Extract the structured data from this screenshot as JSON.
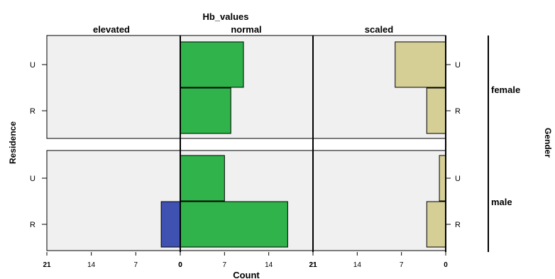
{
  "chart_data": {
    "type": "bar",
    "orientation": "horizontal",
    "title": "Hb_values",
    "xlabel": "Count",
    "ylabel": "Residence",
    "row_facet_label": "Gender",
    "columns": [
      {
        "label": "elevated",
        "axis_ticks": [
          "21",
          "14",
          "7",
          "0"
        ],
        "xlim": [
          21,
          0
        ],
        "direction": "leftward",
        "color": "#3f51b1"
      },
      {
        "label": "normal",
        "axis_ticks": [
          "0",
          "7",
          "14",
          "21"
        ],
        "xlim": [
          0,
          21
        ],
        "direction": "rightward",
        "color": "#2fb34a"
      },
      {
        "label": "scaled",
        "axis_ticks": [
          "21",
          "14",
          "7",
          "0"
        ],
        "xlim": [
          21,
          0
        ],
        "direction": "leftward",
        "color": "#d5cf96"
      }
    ],
    "rows": [
      {
        "label": "female",
        "categories": [
          "U",
          "R"
        ]
      },
      {
        "label": "male",
        "categories": [
          "U",
          "R"
        ]
      }
    ],
    "data": [
      {
        "gender": "female",
        "residence": "U",
        "elevated": 0,
        "normal": 10,
        "scaled": 8
      },
      {
        "gender": "female",
        "residence": "R",
        "elevated": 0,
        "normal": 8,
        "scaled": 3
      },
      {
        "gender": "male",
        "residence": "U",
        "elevated": 0,
        "normal": 7,
        "scaled": 1
      },
      {
        "gender": "male",
        "residence": "R",
        "elevated": 3,
        "normal": 17,
        "scaled": 3
      }
    ],
    "panel_background": "#f0f0f0",
    "grid": false,
    "legend": "none"
  }
}
